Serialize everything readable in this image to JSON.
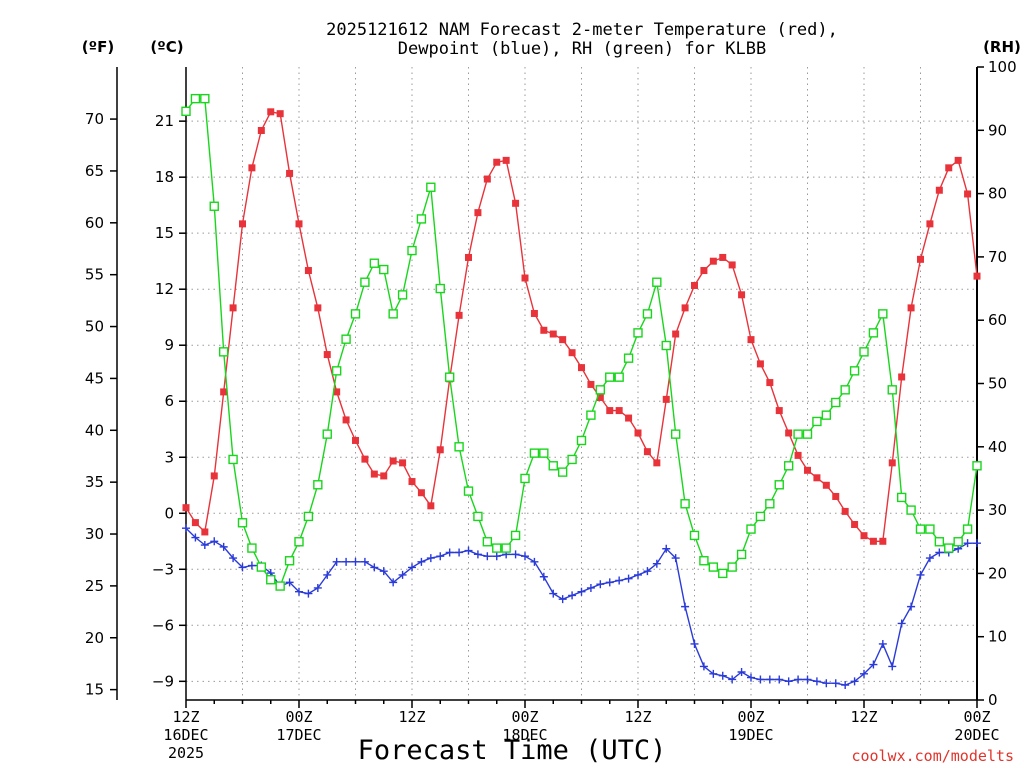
{
  "chart_data": {
    "type": "line",
    "title": [
      "2025121612 NAM Forecast 2-meter Temperature (red),",
      "Dewpoint (blue), RH (green) for KLBB"
    ],
    "xlabel": "Forecast Time (UTC)",
    "credit": "coolwx.com/modelts",
    "units": {
      "left_f": "(ºF)",
      "left_c": "(ºC)",
      "right": "(RH)"
    },
    "x_range": [
      0,
      84
    ],
    "y_range_c": [
      -10.0,
      23.9
    ],
    "rh_range": [
      0,
      100
    ],
    "x_ticks": [
      {
        "hour": 0,
        "lines": [
          "12Z",
          "16DEC",
          "2025"
        ]
      },
      {
        "hour": 12,
        "lines": [
          "00Z",
          "17DEC"
        ]
      },
      {
        "hour": 24,
        "lines": [
          "12Z"
        ]
      },
      {
        "hour": 36,
        "lines": [
          "00Z",
          "18DEC"
        ]
      },
      {
        "hour": 48,
        "lines": [
          "12Z"
        ]
      },
      {
        "hour": 60,
        "lines": [
          "00Z",
          "19DEC"
        ]
      },
      {
        "hour": 72,
        "lines": [
          "12Z"
        ]
      },
      {
        "hour": 84,
        "lines": [
          "00Z",
          "20DEC"
        ]
      }
    ],
    "celsius_ticks": [
      "21",
      "18",
      "15",
      "12",
      "9",
      "6",
      "3",
      "0",
      "−3",
      "−6",
      "−9"
    ],
    "fahrenheit_ticks": [
      "70",
      "65",
      "60",
      "55",
      "50",
      "45",
      "40",
      "35",
      "30",
      "25",
      "20",
      "15"
    ],
    "rh_ticks": [
      "100",
      "90",
      "80",
      "70",
      "60",
      "50",
      "40",
      "30",
      "20",
      "10",
      "0"
    ],
    "series": [
      {
        "name": "2-meter Temperature",
        "unit": "C",
        "color": "#e8333a",
        "marker": "filled-square",
        "x": [
          0,
          1,
          2,
          3,
          4,
          5,
          6,
          7,
          8,
          9,
          10,
          11,
          12,
          13,
          14,
          15,
          16,
          17,
          18,
          19,
          20,
          21,
          22,
          23,
          24,
          25,
          26,
          27,
          28,
          29,
          30,
          31,
          32,
          33,
          34,
          35,
          36,
          37,
          38,
          39,
          40,
          41,
          42,
          43,
          44,
          45,
          46,
          47,
          48,
          49,
          50,
          51,
          52,
          53,
          54,
          55,
          56,
          57,
          58,
          59,
          60,
          61,
          62,
          63,
          64,
          65,
          66,
          67,
          68,
          69,
          70,
          71,
          72,
          73,
          74,
          75,
          76,
          77,
          78,
          79,
          80,
          81,
          82,
          83,
          84
        ],
        "y": [
          0.3,
          -0.5,
          -1.0,
          2.0,
          6.5,
          11.0,
          15.5,
          18.5,
          20.5,
          21.5,
          21.4,
          18.2,
          15.5,
          13.0,
          11.0,
          8.5,
          6.5,
          5.0,
          3.9,
          2.9,
          2.1,
          2.0,
          2.8,
          2.7,
          1.7,
          1.1,
          0.4,
          3.4,
          7.2,
          10.6,
          13.7,
          16.1,
          17.9,
          18.8,
          18.9,
          16.6,
          12.6,
          10.7,
          9.8,
          9.6,
          9.3,
          8.6,
          7.8,
          6.9,
          6.2,
          5.5,
          5.5,
          5.1,
          4.3,
          3.3,
          2.7,
          6.1,
          9.6,
          11.0,
          12.2,
          13.0,
          13.5,
          13.7,
          13.3,
          11.7,
          9.3,
          8.0,
          7.0,
          5.5,
          4.3,
          3.1,
          2.3,
          1.9,
          1.5,
          0.9,
          0.1,
          -0.6,
          -1.2,
          -1.5,
          -1.5,
          2.7,
          7.3,
          11.0,
          13.6,
          15.5,
          17.3,
          18.5,
          18.9,
          17.1,
          12.7
        ]
      },
      {
        "name": "Dewpoint",
        "unit": "C",
        "color": "#2b3bd8",
        "marker": "plus",
        "x": [
          0,
          1,
          2,
          3,
          4,
          5,
          6,
          7,
          8,
          9,
          10,
          11,
          12,
          13,
          14,
          15,
          16,
          17,
          18,
          19,
          20,
          21,
          22,
          23,
          24,
          25,
          26,
          27,
          28,
          29,
          30,
          31,
          32,
          33,
          34,
          35,
          36,
          37,
          38,
          39,
          40,
          41,
          42,
          43,
          44,
          45,
          46,
          47,
          48,
          49,
          50,
          51,
          52,
          53,
          54,
          55,
          56,
          57,
          58,
          59,
          60,
          61,
          62,
          63,
          64,
          65,
          66,
          67,
          68,
          69,
          70,
          71,
          72,
          73,
          74,
          75,
          76,
          77,
          78,
          79,
          80,
          81,
          82,
          83,
          84
        ],
        "y": [
          -0.8,
          -1.3,
          -1.7,
          -1.5,
          -1.8,
          -2.4,
          -2.9,
          -2.8,
          -2.8,
          -3.2,
          -3.9,
          -3.7,
          -4.2,
          -4.3,
          -4.0,
          -3.3,
          -2.6,
          -2.6,
          -2.6,
          -2.6,
          -2.9,
          -3.1,
          -3.7,
          -3.3,
          -2.9,
          -2.6,
          -2.4,
          -2.3,
          -2.1,
          -2.1,
          -2.0,
          -2.2,
          -2.3,
          -2.3,
          -2.2,
          -2.2,
          -2.3,
          -2.6,
          -3.4,
          -4.3,
          -4.6,
          -4.4,
          -4.2,
          -4.0,
          -3.8,
          -3.7,
          -3.6,
          -3.5,
          -3.3,
          -3.1,
          -2.7,
          -1.9,
          -2.4,
          -5.0,
          -7.0,
          -8.2,
          -8.6,
          -8.7,
          -8.9,
          -8.5,
          -8.8,
          -8.9,
          -8.9,
          -8.9,
          -9.0,
          -8.9,
          -8.9,
          -9.0,
          -9.1,
          -9.1,
          -9.2,
          -9.0,
          -8.6,
          -8.1,
          -7.0,
          -8.2,
          -5.9,
          -5.0,
          -3.3,
          -2.4,
          -2.1,
          -2.1,
          -1.9,
          -1.6,
          -1.6
        ]
      },
      {
        "name": "RH",
        "unit": "%",
        "color": "#19d61c",
        "marker": "open-square",
        "x": [
          0,
          1,
          2,
          3,
          4,
          5,
          6,
          7,
          8,
          9,
          10,
          11,
          12,
          13,
          14,
          15,
          16,
          17,
          18,
          19,
          20,
          21,
          22,
          23,
          24,
          25,
          26,
          27,
          28,
          29,
          30,
          31,
          32,
          33,
          34,
          35,
          36,
          37,
          38,
          39,
          40,
          41,
          42,
          43,
          44,
          45,
          46,
          47,
          48,
          49,
          50,
          51,
          52,
          53,
          54,
          55,
          56,
          57,
          58,
          59,
          60,
          61,
          62,
          63,
          64,
          65,
          66,
          67,
          68,
          69,
          70,
          71,
          72,
          73,
          74,
          75,
          76,
          77,
          78,
          79,
          80,
          81,
          82,
          83,
          84
        ],
        "y": [
          93,
          95,
          95,
          78,
          55,
          38,
          28,
          24,
          21,
          19,
          18,
          22,
          25,
          29,
          34,
          42,
          52,
          57,
          61,
          66,
          69,
          68,
          61,
          64,
          71,
          76,
          81,
          65,
          51,
          40,
          33,
          29,
          25,
          24,
          24,
          26,
          35,
          39,
          39,
          37,
          36,
          38,
          41,
          45,
          49,
          51,
          51,
          54,
          58,
          61,
          66,
          56,
          42,
          31,
          26,
          22,
          21,
          20,
          21,
          23,
          27,
          29,
          31,
          34,
          37,
          42,
          42,
          44,
          45,
          47,
          49,
          52,
          55,
          58,
          61,
          49,
          32,
          30,
          27,
          27,
          25,
          24,
          25,
          27,
          37
        ]
      }
    ]
  }
}
